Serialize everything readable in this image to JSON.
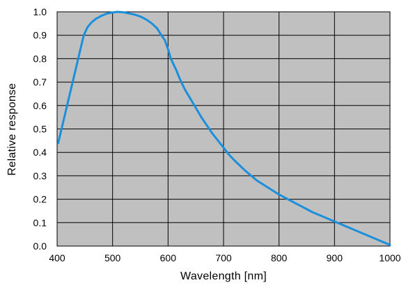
{
  "chart_data": {
    "type": "line",
    "title": "",
    "xlabel": "Wavelength [nm]",
    "ylabel": "Relative response",
    "xlim": [
      400,
      1000
    ],
    "ylim": [
      0.0,
      1.0
    ],
    "x_ticks": [
      400,
      500,
      600,
      700,
      800,
      900,
      1000
    ],
    "x_tick_labels": [
      "400",
      "500",
      "600",
      "700",
      "800",
      "900",
      "1000"
    ],
    "y_ticks": [
      0.0,
      0.1,
      0.2,
      0.3,
      0.4,
      0.5,
      0.6,
      0.7,
      0.8,
      0.9,
      1.0
    ],
    "y_tick_labels": [
      "0.0",
      "0.1",
      "0.2",
      "0.3",
      "0.4",
      "0.5",
      "0.6",
      "0.7",
      "0.8",
      "0.9",
      "1.0"
    ],
    "grid": true,
    "legend": "none",
    "plot_background": "#c0c0c0",
    "grid_color": "#000000",
    "series": [
      {
        "color": "#1a8fdc",
        "x": [
          402,
          410,
          420,
          430,
          440,
          448,
          455,
          462,
          470,
          480,
          490,
          500,
          508,
          520,
          530,
          540,
          550,
          560,
          570,
          580,
          588,
          594,
          600,
          605,
          610,
          615,
          620,
          630,
          640,
          650,
          660,
          670,
          680,
          690,
          700,
          710,
          720,
          740,
          760,
          780,
          800,
          820,
          840,
          860,
          880,
          900,
          920,
          940,
          960,
          980,
          1000
        ],
        "y": [
          0.44,
          0.52,
          0.62,
          0.72,
          0.82,
          0.9,
          0.935,
          0.955,
          0.97,
          0.983,
          0.993,
          0.997,
          1.0,
          0.998,
          0.993,
          0.988,
          0.98,
          0.968,
          0.952,
          0.93,
          0.9,
          0.88,
          0.84,
          0.8,
          0.775,
          0.75,
          0.72,
          0.67,
          0.63,
          0.59,
          0.55,
          0.515,
          0.48,
          0.45,
          0.42,
          0.39,
          0.365,
          0.32,
          0.28,
          0.25,
          0.22,
          0.195,
          0.17,
          0.145,
          0.125,
          0.105,
          0.085,
          0.065,
          0.045,
          0.025,
          0.005
        ]
      }
    ]
  }
}
